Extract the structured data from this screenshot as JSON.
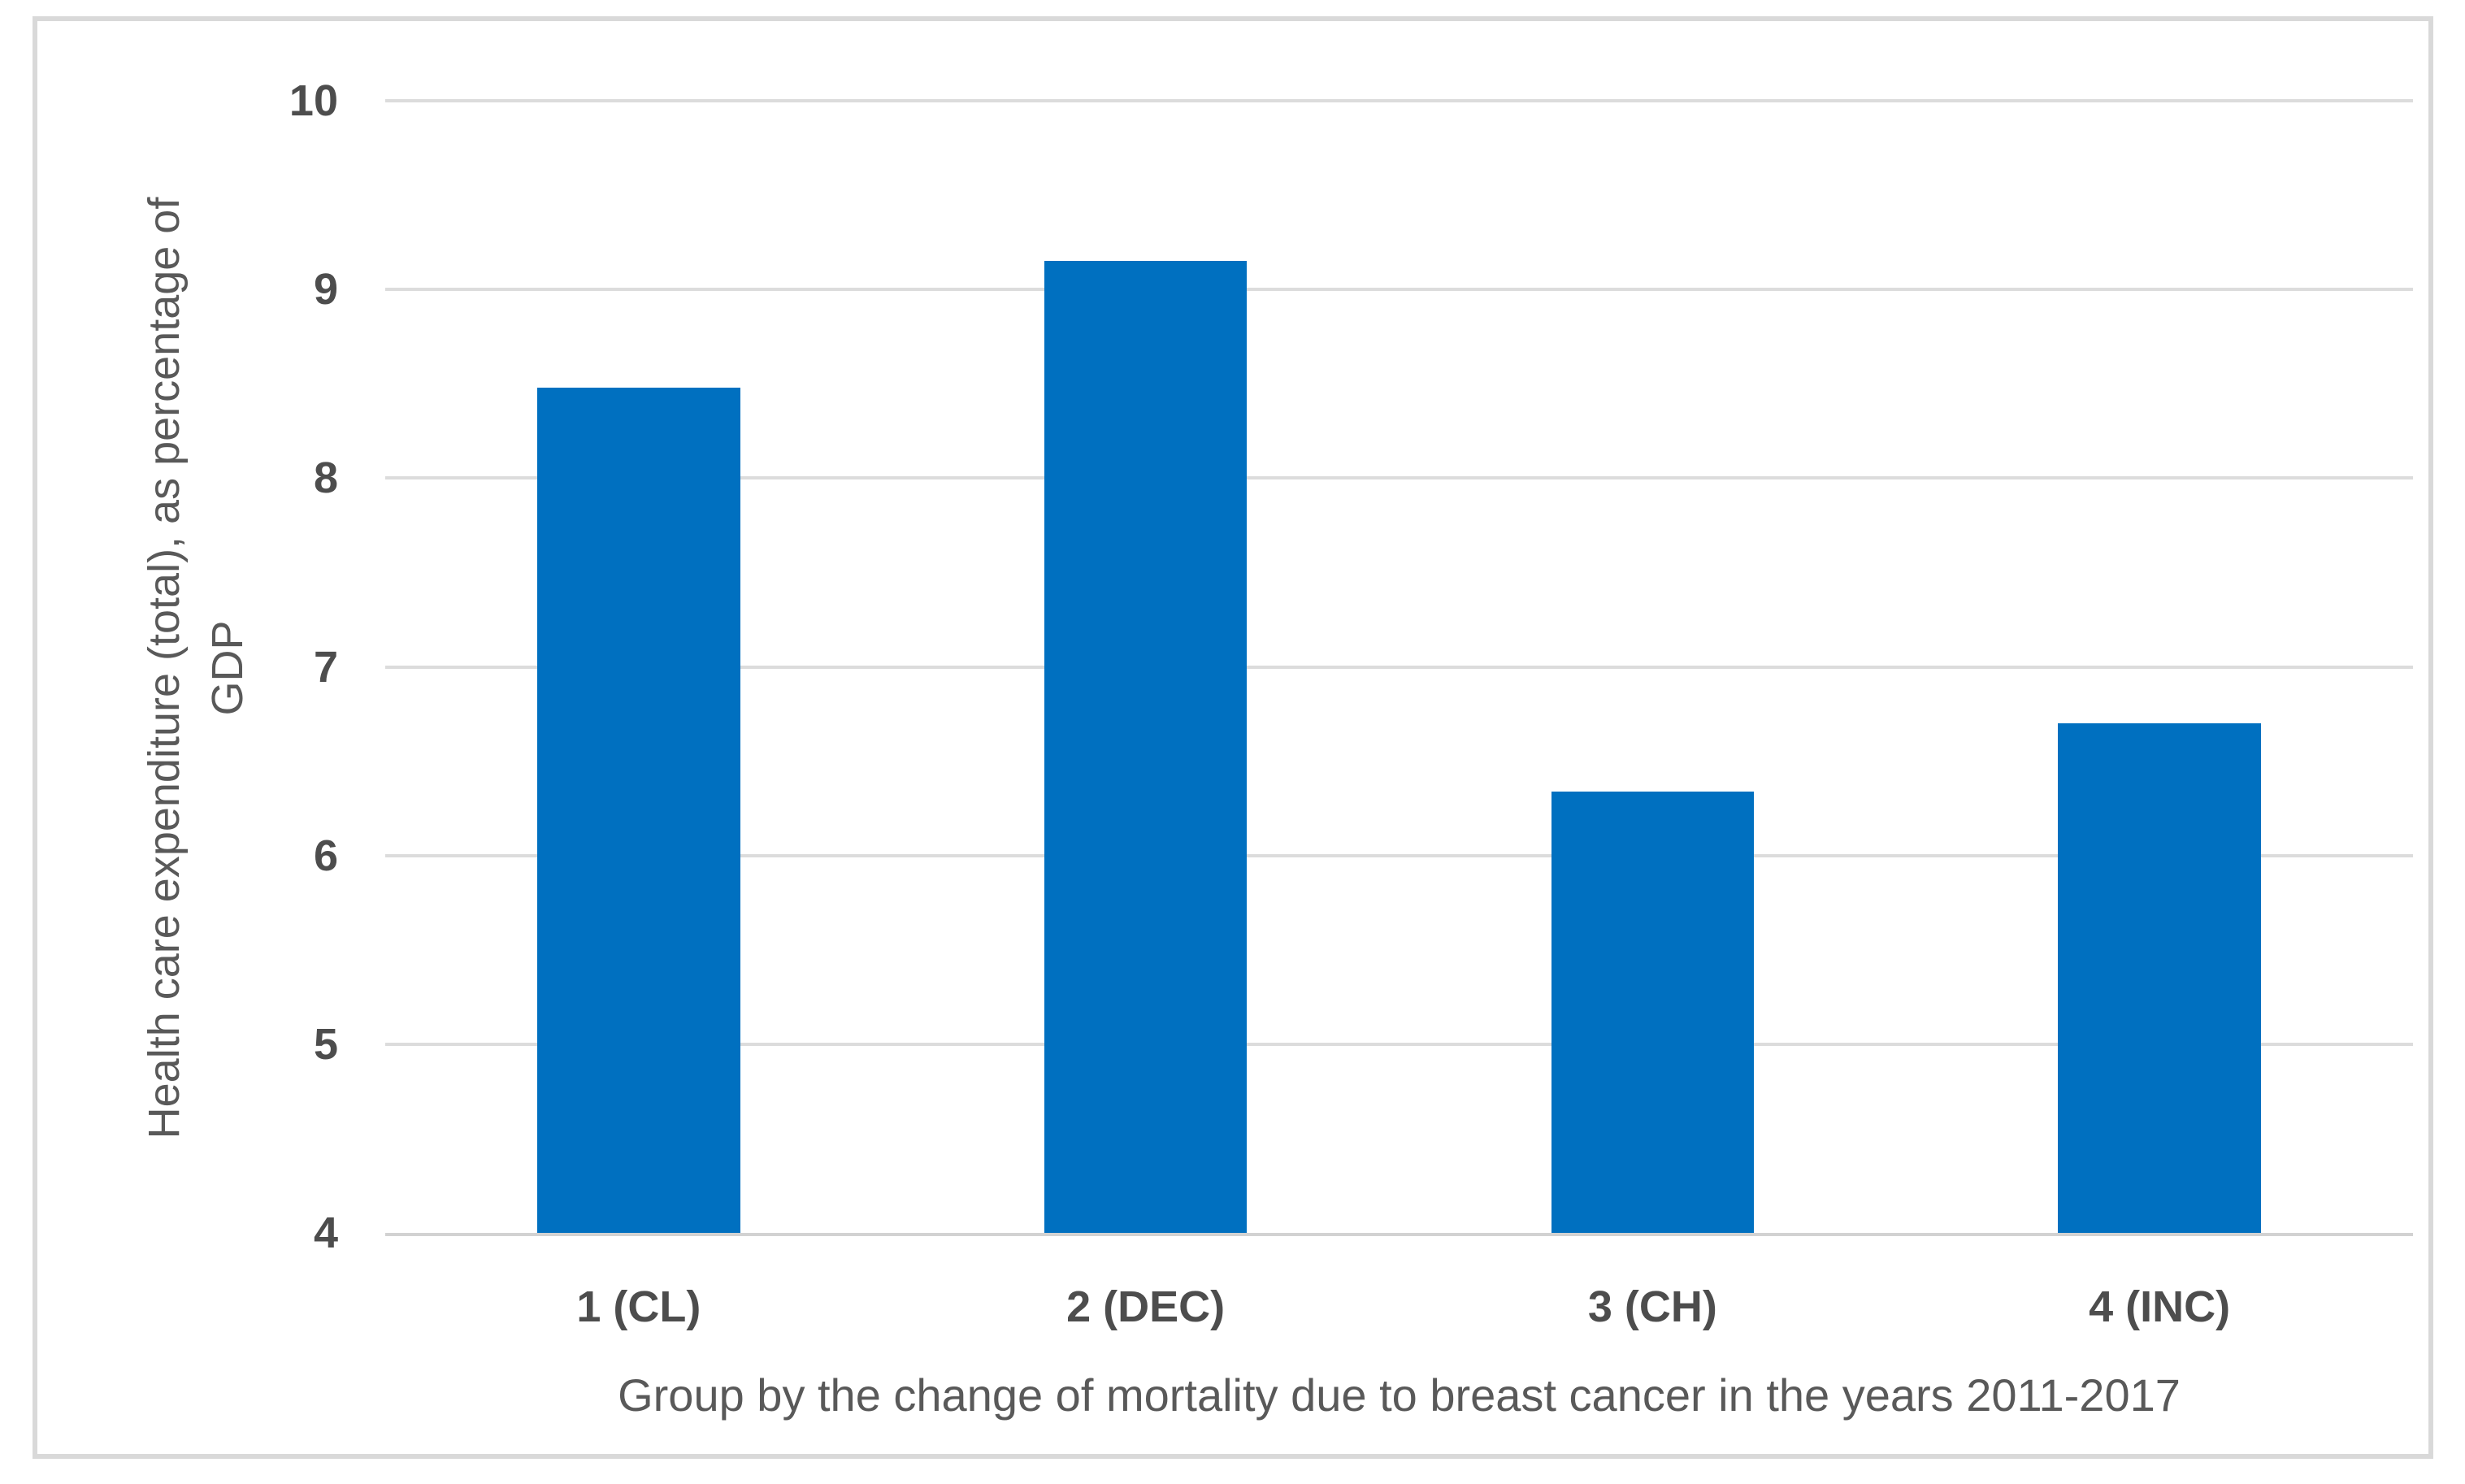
{
  "chart_data": {
    "type": "bar",
    "categories": [
      "1 (CL)",
      "2 (DEC)",
      "3 (CH)",
      "4 (INC)"
    ],
    "values": [
      8.48,
      9.15,
      6.34,
      6.7
    ],
    "title": "",
    "xlabel": "Group by the change of mortality due to breast cancer in the years 2011-2017",
    "ylabel": "Health care expenditure (total), as percentage of GDP",
    "ylabel_lines": [
      "Health care expenditure (total), as percentage of",
      "GDP"
    ],
    "ylim": [
      4,
      10
    ],
    "yticks": [
      10,
      9,
      8,
      7,
      6,
      5,
      4
    ],
    "bar_width_fraction": 0.4,
    "grid": true,
    "legend": "none",
    "colors": {
      "bar": "#0070C0",
      "gridline": "#DCDCDC",
      "axis_line": "#D2D2D2",
      "tick_text": "#4D4D4D",
      "title_text": "#595959",
      "chart_border": "#D9D9D9",
      "background": "#FFFFFF"
    }
  }
}
